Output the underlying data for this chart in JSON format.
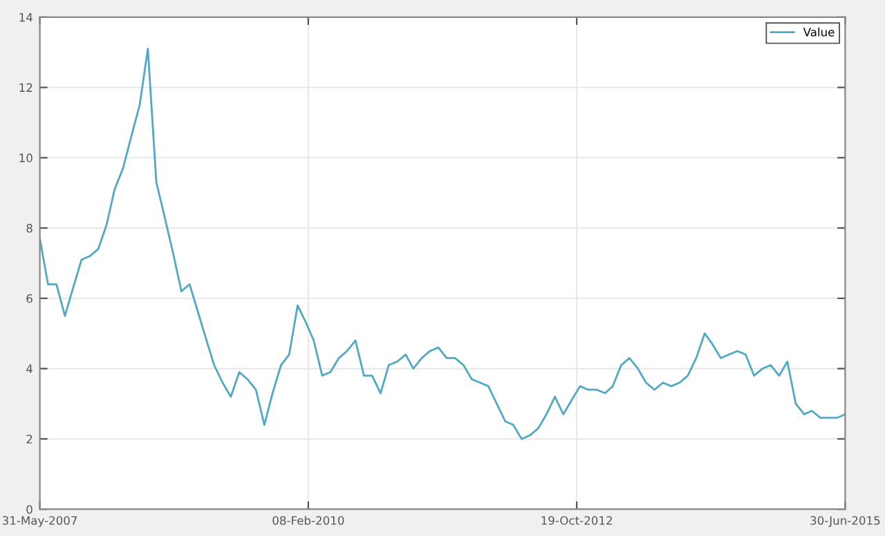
{
  "chart_data": {
    "type": "line",
    "x": [
      "2007-05-31",
      "2007-06-30",
      "2007-07-31",
      "2007-08-31",
      "2007-09-30",
      "2007-10-31",
      "2007-11-30",
      "2007-12-31",
      "2008-01-31",
      "2008-02-29",
      "2008-03-31",
      "2008-04-30",
      "2008-05-31",
      "2008-06-30",
      "2008-07-31",
      "2008-08-31",
      "2008-09-30",
      "2008-10-31",
      "2008-11-30",
      "2008-12-31",
      "2009-01-31",
      "2009-02-28",
      "2009-03-31",
      "2009-04-30",
      "2009-05-31",
      "2009-06-30",
      "2009-07-31",
      "2009-08-31",
      "2009-09-30",
      "2009-10-31",
      "2009-11-30",
      "2009-12-31",
      "2010-01-31",
      "2010-02-28",
      "2010-03-31",
      "2010-04-30",
      "2010-05-31",
      "2010-06-30",
      "2010-07-31",
      "2010-08-31",
      "2010-09-30",
      "2010-10-31",
      "2010-11-30",
      "2010-12-31",
      "2011-01-31",
      "2011-02-28",
      "2011-03-31",
      "2011-04-30",
      "2011-05-31",
      "2011-06-30",
      "2011-07-31",
      "2011-08-31",
      "2011-09-30",
      "2011-10-31",
      "2011-11-30",
      "2011-12-31",
      "2012-01-31",
      "2012-02-29",
      "2012-03-31",
      "2012-04-30",
      "2012-05-31",
      "2012-06-30",
      "2012-07-31",
      "2012-08-31",
      "2012-09-30",
      "2012-10-31",
      "2012-11-30",
      "2012-12-31",
      "2013-01-31",
      "2013-02-28",
      "2013-03-31",
      "2013-04-30",
      "2013-05-31",
      "2013-06-30",
      "2013-07-31",
      "2013-08-31",
      "2013-09-30",
      "2013-10-31",
      "2013-11-30",
      "2013-12-31",
      "2014-01-31",
      "2014-02-28",
      "2014-03-31",
      "2014-04-30",
      "2014-05-31",
      "2014-06-30",
      "2014-07-31",
      "2014-08-31",
      "2014-09-30",
      "2014-10-31",
      "2014-11-30",
      "2014-12-31",
      "2015-01-31",
      "2015-02-28",
      "2015-03-31",
      "2015-04-30",
      "2015-05-31",
      "2015-06-30"
    ],
    "series": [
      {
        "name": "Value",
        "color": "#4fa8c4",
        "values": [
          7.7,
          6.4,
          6.4,
          5.5,
          6.3,
          7.1,
          7.2,
          7.4,
          8.1,
          9.1,
          9.7,
          10.6,
          11.5,
          13.1,
          9.3,
          8.3,
          7.3,
          6.2,
          6.4,
          5.6,
          4.8,
          4.1,
          3.6,
          3.2,
          3.9,
          3.7,
          3.4,
          2.4,
          3.3,
          4.1,
          4.4,
          5.8,
          5.3,
          4.8,
          3.8,
          3.9,
          4.3,
          4.5,
          4.8,
          3.8,
          3.8,
          3.3,
          4.1,
          4.2,
          4.4,
          4.0,
          4.3,
          4.5,
          4.6,
          4.3,
          4.3,
          4.1,
          3.7,
          3.6,
          3.5,
          3.0,
          2.5,
          2.4,
          2.0,
          2.1,
          2.3,
          2.7,
          3.2,
          2.7,
          3.1,
          3.5,
          3.4,
          3.4,
          3.3,
          3.5,
          4.1,
          4.3,
          4.0,
          3.6,
          3.4,
          3.6,
          3.5,
          3.6,
          3.8,
          4.3,
          5.0,
          4.7,
          4.3,
          4.4,
          4.5,
          4.4,
          3.8,
          4.0,
          4.1,
          3.8,
          4.2,
          3.0,
          2.7,
          2.8,
          2.6,
          2.6,
          2.6,
          2.7
        ]
      }
    ],
    "xlim": [
      "2007-05-31",
      "2015-06-30"
    ],
    "xticks": [
      {
        "value": "2007-05-31",
        "label": "31-May-2007"
      },
      {
        "value": "2010-02-08",
        "label": "08-Feb-2010"
      },
      {
        "value": "2012-10-19",
        "label": "19-Oct-2012"
      },
      {
        "value": "2015-06-30",
        "label": "30-Jun-2015"
      }
    ],
    "ylim": [
      0,
      14
    ],
    "yticks": [
      0,
      2,
      4,
      6,
      8,
      10,
      12,
      14
    ],
    "grid": true,
    "legend": "top right"
  }
}
